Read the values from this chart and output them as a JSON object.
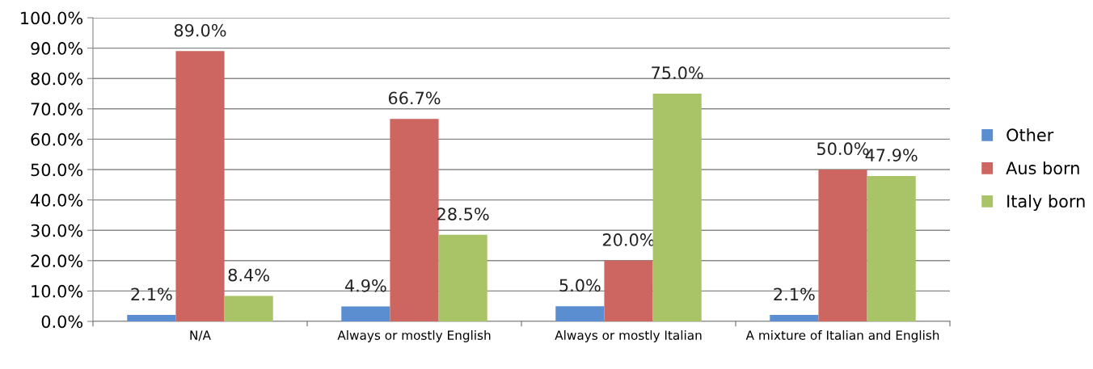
{
  "chart_data": {
    "type": "bar",
    "categories": [
      "N/A",
      "Always or mostly English",
      "Always or mostly Italian",
      "A mixture of Italian and English"
    ],
    "series": [
      {
        "name": "Other",
        "color": "#5a8ed0",
        "values": [
          2.1,
          4.9,
          5.0,
          2.1
        ],
        "value_labels": [
          "2.1%",
          "4.9%",
          "5.0%",
          "2.1%"
        ]
      },
      {
        "name": "Aus born",
        "color": "#cd6560",
        "values": [
          89.0,
          66.7,
          20.0,
          50.0
        ],
        "value_labels": [
          "89.0%",
          "66.7%",
          "20.0%",
          "50.0%"
        ]
      },
      {
        "name": "Italy born",
        "color": "#a8c467",
        "values": [
          8.4,
          28.5,
          75.0,
          47.9
        ],
        "value_labels": [
          "8.4%",
          "28.5%",
          "75.0%",
          "47.9%"
        ]
      }
    ],
    "ylim": [
      0,
      100
    ],
    "yticks": [
      {
        "value": 0,
        "label": "0.0%"
      },
      {
        "value": 10,
        "label": "10.0%"
      },
      {
        "value": 20,
        "label": "20.0%"
      },
      {
        "value": 30,
        "label": "30.0%"
      },
      {
        "value": 40,
        "label": "40.0%"
      },
      {
        "value": 50,
        "label": "50.0%"
      },
      {
        "value": 60,
        "label": "60.0%"
      },
      {
        "value": 70,
        "label": "70.0%"
      },
      {
        "value": 80,
        "label": "80.0%"
      },
      {
        "value": 90,
        "label": "90.0%"
      },
      {
        "value": 100,
        "label": "100.0%"
      }
    ],
    "grid": "y",
    "legend": "right"
  }
}
